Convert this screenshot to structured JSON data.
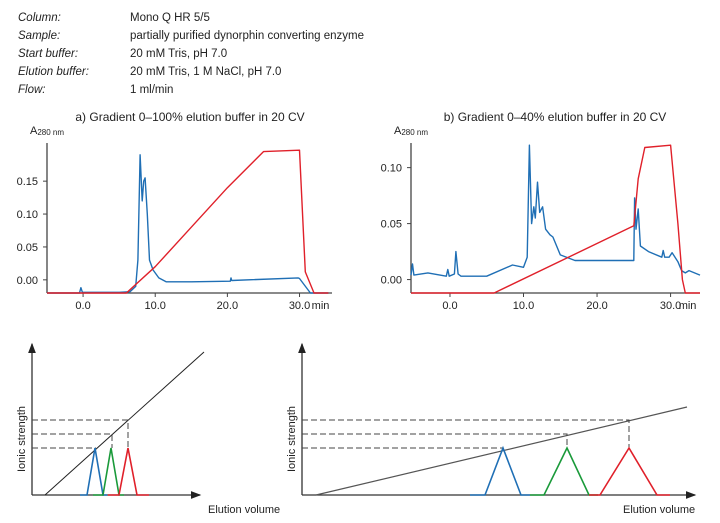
{
  "meta": [
    {
      "key": "Column:",
      "value": "Mono Q HR 5/5"
    },
    {
      "key": "Sample:",
      "value": "partially purified dynorphin converting enzyme"
    },
    {
      "key": "Start buffer:",
      "value": "20 mM Tris, pH 7.0"
    },
    {
      "key": "Elution buffer:",
      "value": "20 mM Tris, 1 M NaCl, pH 7.0"
    },
    {
      "key": "Flow:",
      "value": "1 ml/min"
    }
  ],
  "colors": {
    "absorbance": "#1f6fb5",
    "gradient": "#e0202a",
    "peak1": "#1f6fb5",
    "peak2": "#1a9a3a",
    "peak3": "#e0202a"
  },
  "chart_data": [
    {
      "type": "line",
      "title": "a) Gradient 0–100% elution buffer in 20 CV",
      "ylabel": "A280 nm",
      "ylabel_main": "A",
      "ylabel_sub": "280 nm",
      "xlabel": "min",
      "xlim": [
        -5,
        34.5
      ],
      "ylim": [
        -0.02,
        0.208
      ],
      "xticks": [
        "0.0",
        "10.0",
        "20.0",
        "30.0"
      ],
      "xtick_values": [
        0,
        10,
        20,
        30
      ],
      "yticks": [
        "0.00",
        "0.05",
        "0.10",
        "0.15"
      ],
      "ytick_values": [
        0,
        0.05,
        0.1,
        0.15
      ],
      "series": [
        {
          "color": "#1f6fb5",
          "points": [
            [
              -5,
              -0.02
            ],
            [
              -0.5,
              -0.02
            ],
            [
              -0.3,
              -0.012
            ],
            [
              -0.1,
              -0.019
            ],
            [
              5,
              -0.019
            ],
            [
              6.5,
              -0.018
            ],
            [
              7.3,
              -0.01
            ],
            [
              7.6,
              0.03
            ],
            [
              7.9,
              0.19
            ],
            [
              8.2,
              0.12
            ],
            [
              8.4,
              0.15
            ],
            [
              8.6,
              0.155
            ],
            [
              8.9,
              0.1
            ],
            [
              9.2,
              0.03
            ],
            [
              9.7,
              0.015
            ],
            [
              10.5,
              0.003
            ],
            [
              11.5,
              -0.003
            ],
            [
              15,
              -0.003
            ],
            [
              20.4,
              -0.002
            ],
            [
              20.5,
              0.003
            ],
            [
              20.6,
              -0.001
            ],
            [
              29.8,
              0.003
            ],
            [
              30,
              0.002
            ],
            [
              31.5,
              -0.02
            ],
            [
              34,
              -0.02
            ]
          ]
        },
        {
          "color": "#e0202a",
          "points": [
            [
              -5,
              -0.02
            ],
            [
              6,
              -0.02
            ],
            [
              10,
              0.02
            ],
            [
              15,
              0.08
            ],
            [
              20,
              0.14
            ],
            [
              25,
              0.195
            ],
            [
              30,
              0.197
            ],
            [
              30.8,
              0.012
            ],
            [
              32,
              -0.02
            ],
            [
              34,
              -0.02
            ]
          ]
        }
      ]
    },
    {
      "type": "line",
      "title": "b) Gradient 0–40% elution buffer in 20 CV",
      "ylabel": "A280 nm",
      "ylabel_main": "A",
      "ylabel_sub": "280 nm",
      "xlabel": "min",
      "xlim": [
        -5.3,
        34
      ],
      "ylim": [
        -0.012,
        0.122
      ],
      "xticks": [
        "0.0",
        "10.0",
        "20.0",
        "30.0"
      ],
      "xtick_values": [
        0,
        10,
        20,
        30
      ],
      "yticks": [
        "0.00",
        "0.05",
        "0.10"
      ],
      "ytick_values": [
        0,
        0.05,
        0.1
      ],
      "series": [
        {
          "color": "#1f6fb5",
          "points": [
            [
              -5.3,
              0.004
            ],
            [
              -5.1,
              0.014
            ],
            [
              -4.9,
              0.004
            ],
            [
              -3,
              0.006
            ],
            [
              -0.5,
              0.003
            ],
            [
              -0.3,
              0.009
            ],
            [
              -0.1,
              0.003
            ],
            [
              0.6,
              0.005
            ],
            [
              0.8,
              0.025
            ],
            [
              1.1,
              0.005
            ],
            [
              1.5,
              0.003
            ],
            [
              5,
              0.003
            ],
            [
              8.5,
              0.013
            ],
            [
              10,
              0.011
            ],
            [
              10.5,
              0.02
            ],
            [
              10.8,
              0.12
            ],
            [
              11.1,
              0.05
            ],
            [
              11.4,
              0.065
            ],
            [
              11.6,
              0.055
            ],
            [
              11.9,
              0.087
            ],
            [
              12.2,
              0.06
            ],
            [
              12.6,
              0.065
            ],
            [
              13,
              0.045
            ],
            [
              13.6,
              0.04
            ],
            [
              14,
              0.038
            ],
            [
              15,
              0.022
            ],
            [
              17,
              0.017
            ],
            [
              25,
              0.017
            ],
            [
              25.1,
              0.073
            ],
            [
              25.3,
              0.045
            ],
            [
              25.6,
              0.063
            ],
            [
              25.9,
              0.03
            ],
            [
              27,
              0.025
            ],
            [
              28.8,
              0.02
            ],
            [
              29,
              0.026
            ],
            [
              29.2,
              0.02
            ],
            [
              29.8,
              0.02
            ],
            [
              30.2,
              0.024
            ],
            [
              31,
              0.016
            ],
            [
              31.5,
              0.008
            ],
            [
              32,
              0.006
            ],
            [
              32.5,
              0.008
            ],
            [
              34,
              0.004
            ]
          ]
        },
        {
          "color": "#e0202a",
          "points": [
            [
              -5.3,
              -0.012
            ],
            [
              6,
              -0.012
            ],
            [
              25,
              0.048
            ],
            [
              25.6,
              0.09
            ],
            [
              26.5,
              0.118
            ],
            [
              30,
              0.12
            ],
            [
              31,
              0.05
            ],
            [
              31.6,
              0
            ],
            [
              32,
              -0.012
            ],
            [
              34,
              -0.012
            ]
          ]
        }
      ]
    }
  ],
  "diagrams": {
    "ylabel": "Ionic strength",
    "xlabel": "Elution volume"
  }
}
